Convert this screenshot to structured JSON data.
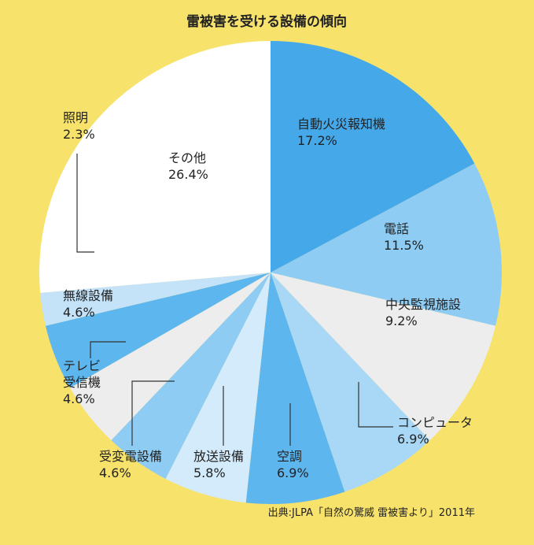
{
  "chart_data": {
    "type": "pie",
    "title": "雷被害を受ける設備の傾向",
    "source": "出典:JLPA「自然の驚威 雷被害より」2011年",
    "slices": [
      {
        "name": "自動火災報知機",
        "value": 17.2,
        "value_label": "17.2%",
        "color": "#45A8E8"
      },
      {
        "name": "電話",
        "value": 11.5,
        "value_label": "11.5%",
        "color": "#8ECCF3"
      },
      {
        "name": "中央監視施設",
        "value": 9.2,
        "value_label": "9.2%",
        "color": "#EDEDED"
      },
      {
        "name": "コンピュータ",
        "value": 6.9,
        "value_label": "6.9%",
        "color": "#A9D8F6"
      },
      {
        "name": "空調",
        "value": 6.9,
        "value_label": "6.9%",
        "color": "#5DB6EE"
      },
      {
        "name": "放送設備",
        "value": 5.8,
        "value_label": "5.8%",
        "color": "#D3EBFA"
      },
      {
        "name": "受変電設備",
        "value": 4.6,
        "value_label": "4.6%",
        "color": "#8ECCF3"
      },
      {
        "name": "テレビ受信機",
        "name_lines": [
          "テレビ",
          "受信機"
        ],
        "value": 4.6,
        "value_label": "4.6%",
        "color": "#EDEDED"
      },
      {
        "name": "無線設備",
        "value": 4.6,
        "value_label": "4.6%",
        "color": "#5DB6EE"
      },
      {
        "name": "照明",
        "value": 2.3,
        "value_label": "2.3%",
        "color": "#C4E3F8"
      },
      {
        "name": "その他",
        "value": 26.4,
        "value_label": "26.4%",
        "color": "#FFFFFF"
      }
    ]
  }
}
